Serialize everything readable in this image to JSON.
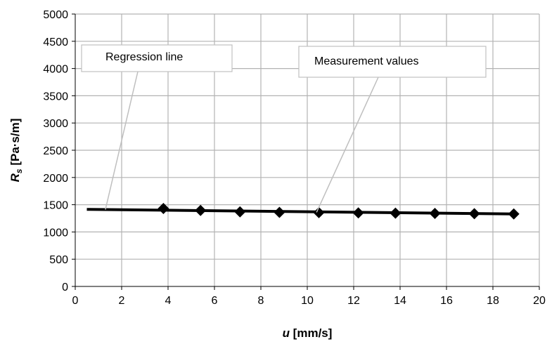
{
  "chart_data": {
    "type": "scatter",
    "title": "",
    "xlabel": {
      "main": "u",
      "unit": " [mm/s]"
    },
    "ylabel": {
      "main": "R",
      "sub": "s",
      "unit": " [Pa·s/m]"
    },
    "xlim": [
      0,
      20
    ],
    "ylim": [
      0,
      5000
    ],
    "xticks": [
      0,
      2,
      4,
      6,
      8,
      10,
      12,
      14,
      16,
      18,
      20
    ],
    "yticks": [
      0,
      500,
      1000,
      1500,
      2000,
      2500,
      3000,
      3500,
      4000,
      4500,
      5000
    ],
    "grid": true,
    "series": [
      {
        "kind": "markers",
        "marker": "diamond",
        "color": "#000000",
        "x": [
          3.8,
          5.4,
          7.1,
          8.8,
          10.5,
          12.2,
          13.8,
          15.5,
          17.2,
          18.9
        ],
        "y": [
          1430,
          1395,
          1370,
          1360,
          1355,
          1350,
          1345,
          1340,
          1335,
          1330
        ]
      },
      {
        "kind": "line",
        "color": "#000000",
        "x": [
          0.5,
          18.9
        ],
        "y": [
          1415,
          1330
        ]
      }
    ],
    "annotations": [
      {
        "text": "Regression line",
        "point": [
          1.3,
          1410
        ]
      },
      {
        "text": "Measurement values",
        "point": [
          10.4,
          1360
        ]
      }
    ]
  }
}
